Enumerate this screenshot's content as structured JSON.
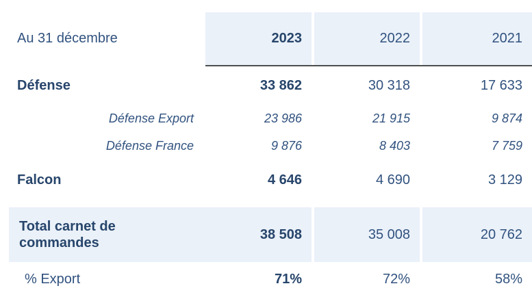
{
  "table": {
    "title_note": "Au 31 décembre",
    "header": {
      "years": [
        "2023",
        "2022",
        "2021"
      ]
    },
    "rows": [
      {
        "label": "Défense",
        "values": [
          "33 862",
          "30 318",
          "17 633"
        ]
      },
      {
        "label": "Défense Export",
        "values": [
          "23 986",
          "21 915",
          "9 874"
        ]
      },
      {
        "label": "Défense France",
        "values": [
          "9 876",
          "8 403",
          "7 759"
        ]
      },
      {
        "label": "Falcon",
        "values": [
          "4 646",
          "4 690",
          "3 129"
        ]
      },
      {
        "label": "Total carnet de commandes",
        "values": [
          "38 508",
          "35 008",
          "20 762"
        ]
      },
      {
        "label": "% Export",
        "values": [
          "71%",
          "72%",
          "58%"
        ]
      }
    ],
    "colors": {
      "highlight_fill": "#EAF1F9",
      "underline": "#4D4D4D",
      "text_regular": "#31527F",
      "text_bold": "#27456B"
    }
  },
  "chart_data": {
    "type": "table",
    "title": "Au 31 décembre",
    "columns": [
      "2023",
      "2022",
      "2021"
    ],
    "series": [
      {
        "name": "Défense",
        "values": [
          33862,
          30318,
          17633
        ]
      },
      {
        "name": "Défense Export",
        "values": [
          23986,
          21915,
          9874
        ]
      },
      {
        "name": "Défense France",
        "values": [
          9876,
          8403,
          7759
        ]
      },
      {
        "name": "Falcon",
        "values": [
          4646,
          4690,
          3129
        ]
      },
      {
        "name": "Total carnet de commandes",
        "values": [
          38508,
          35008,
          20762
        ]
      },
      {
        "name": "% Export",
        "values": [
          "71%",
          "72%",
          "58%"
        ]
      }
    ]
  }
}
